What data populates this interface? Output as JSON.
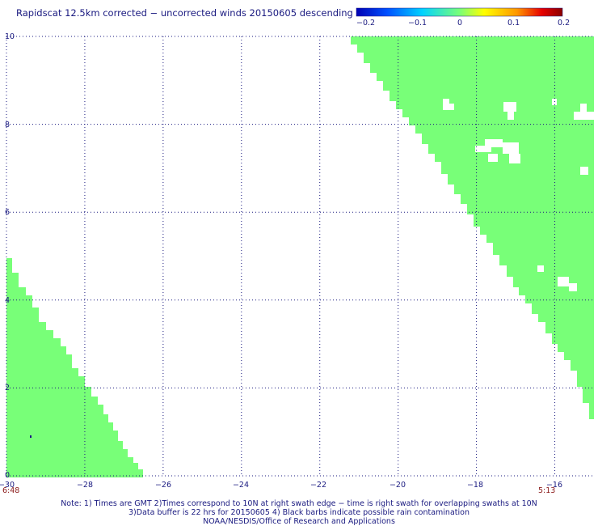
{
  "title": "Rapidscat 12.5km corrected − uncorrected winds 20150605 descending",
  "colorbar": {
    "labels": [
      "−0.2",
      "−0.1",
      "0",
      "0.1",
      "0.2"
    ],
    "colors": [
      "#0000b4",
      "#0050ff",
      "#00d2ff",
      "#78ff78",
      "#ffff00",
      "#ff9600",
      "#e60000",
      "#8b0000"
    ]
  },
  "axes": {
    "x_labels": [
      "−30",
      "−28",
      "−26",
      "−24",
      "−22",
      "−20",
      "−18",
      "−16"
    ],
    "y_labels": [
      "0",
      "2",
      "4",
      "6",
      "8",
      "10"
    ],
    "x_range": [
      -30,
      -15
    ],
    "y_range": [
      0,
      10
    ],
    "grid": true
  },
  "swath_times": {
    "left": "6:48",
    "right": "5:13"
  },
  "swath_color": "#78ff78",
  "notes": {
    "line1": "Note: 1) Times are GMT 2)Times correspond to 10N at right swath edge − time is right swath for overlapping swaths at 10N",
    "line2": "3)Data buffer is 22 hrs for 20150605 4) Black barbs indicate possible rain contamination",
    "line3": "NOAA/NESDIS/Office of Research and Applications"
  }
}
